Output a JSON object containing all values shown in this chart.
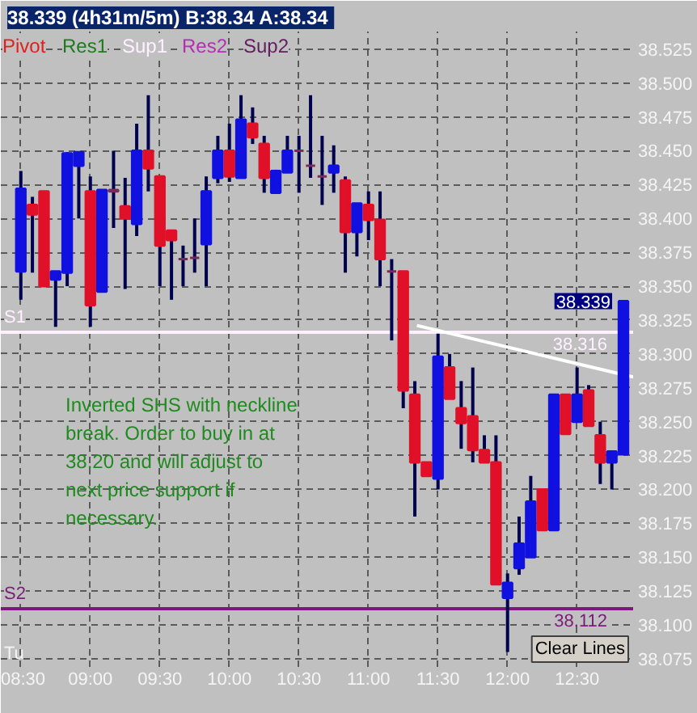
{
  "chart_data": {
    "type": "candlestick",
    "title": "38.339 (4h31m/5m)  B:38.34 A:38.34",
    "x": [
      8.5,
      8.5833,
      8.6667,
      8.75,
      8.8333,
      8.9167,
      9.0,
      9.0833,
      9.1667,
      9.25,
      9.3333,
      9.4167,
      9.5,
      9.5833,
      9.6667,
      9.75,
      9.8333,
      9.9167,
      10.0,
      10.0833,
      10.1667,
      10.25,
      10.3333,
      10.4167,
      10.5,
      10.5833,
      10.6667,
      10.75,
      10.8333,
      10.9167,
      11.0,
      11.0833,
      11.1667,
      11.25,
      11.3333,
      11.4167,
      11.5,
      11.5833,
      11.6667,
      11.75,
      11.8333,
      11.9167,
      12.0,
      12.0833,
      12.1667,
      12.25,
      12.3333,
      12.4167,
      12.5,
      12.5833,
      12.6667,
      12.75,
      12.8333
    ],
    "ohlc": [
      [
        38.361,
        38.435,
        38.34,
        38.422
      ],
      [
        38.41,
        38.416,
        38.36,
        38.403
      ],
      [
        38.42,
        38.42,
        38.35,
        38.35
      ],
      [
        38.355,
        38.361,
        38.32,
        38.361
      ],
      [
        38.36,
        38.449,
        38.35,
        38.448
      ],
      [
        38.439,
        38.449,
        38.4,
        38.449
      ],
      [
        38.42,
        38.431,
        38.32,
        38.336
      ],
      [
        38.346,
        38.421,
        38.346,
        38.421
      ],
      [
        38.421,
        38.45,
        38.393,
        38.42
      ],
      [
        38.409,
        38.43,
        38.348,
        38.4
      ],
      [
        38.396,
        38.47,
        38.387,
        38.45
      ],
      [
        38.45,
        38.491,
        38.42,
        38.437
      ],
      [
        38.431,
        38.431,
        38.35,
        38.38
      ],
      [
        38.391,
        38.391,
        38.34,
        38.384
      ],
      [
        38.37,
        38.38,
        38.35,
        38.37
      ],
      [
        38.371,
        38.4,
        38.36,
        38.371
      ],
      [
        38.381,
        38.431,
        38.35,
        38.42
      ],
      [
        38.43,
        38.461,
        38.426,
        38.45
      ],
      [
        38.45,
        38.47,
        38.427,
        38.431
      ],
      [
        38.43,
        38.491,
        38.43,
        38.473
      ],
      [
        38.47,
        38.482,
        38.455,
        38.46
      ],
      [
        38.455,
        38.461,
        38.419,
        38.43
      ],
      [
        38.419,
        38.436,
        38.419,
        38.435
      ],
      [
        38.434,
        38.461,
        38.434,
        38.45
      ],
      [
        38.45,
        38.461,
        38.419,
        38.45
      ],
      [
        38.439,
        38.491,
        38.43,
        38.439
      ],
      [
        38.431,
        38.461,
        38.41,
        38.431
      ],
      [
        38.434,
        38.454,
        38.419,
        38.439
      ],
      [
        38.428,
        38.431,
        38.36,
        38.39
      ],
      [
        38.39,
        38.411,
        38.372,
        38.411
      ],
      [
        38.41,
        38.42,
        38.384,
        38.399
      ],
      [
        38.399,
        38.42,
        38.35,
        38.37
      ],
      [
        38.361,
        38.37,
        38.31,
        38.361
      ],
      [
        38.361,
        38.361,
        38.26,
        38.273
      ],
      [
        38.27,
        38.28,
        38.18,
        38.22
      ],
      [
        38.22,
        38.22,
        38.21,
        38.21
      ],
      [
        38.208,
        38.315,
        38.2,
        38.298
      ],
      [
        38.29,
        38.3,
        38.267,
        38.267
      ],
      [
        38.26,
        38.28,
        38.23,
        38.249
      ],
      [
        38.254,
        38.29,
        38.22,
        38.229
      ],
      [
        38.229,
        38.24,
        38.22,
        38.22
      ],
      [
        38.22,
        38.24,
        38.13,
        38.13
      ],
      [
        38.12,
        38.138,
        38.08,
        38.131
      ],
      [
        38.142,
        38.18,
        38.137,
        38.16
      ],
      [
        38.15,
        38.21,
        38.15,
        38.191
      ],
      [
        38.2,
        38.2,
        38.17,
        38.17
      ],
      [
        38.17,
        38.27,
        38.17,
        38.27
      ],
      [
        38.27,
        38.27,
        38.241,
        38.241
      ],
      [
        38.25,
        38.29,
        38.25,
        38.27
      ],
      [
        38.273,
        38.277,
        38.247,
        38.247
      ],
      [
        38.24,
        38.25,
        38.204,
        38.22
      ],
      [
        38.22,
        38.228,
        38.2,
        38.228
      ],
      [
        38.226,
        38.339,
        38.226,
        38.339
      ]
    ],
    "colors": [
      "#1010e0",
      "#e01028",
      "#e01028",
      "#1010e0",
      "#1010e0",
      "#1010e0",
      "#e01028",
      "#1010e0",
      "#7a2a5a",
      "#e01028",
      "#1010e0",
      "#e01028",
      "#e01028",
      "#e01028",
      "#7a2a5a",
      "#7a2a5a",
      "#1010e0",
      "#1010e0",
      "#e01028",
      "#1010e0",
      "#e01028",
      "#e01028",
      "#1010e0",
      "#1010e0",
      "#7a2a5a",
      "#7a2a5a",
      "#7a2a5a",
      "#1010e0",
      "#e01028",
      "#1010e0",
      "#e01028",
      "#e01028",
      "#7a2a5a",
      "#e01028",
      "#e01028",
      "#e01028",
      "#1010e0",
      "#e01028",
      "#e01028",
      "#e01028",
      "#e01028",
      "#e01028",
      "#1010e0",
      "#1010e0",
      "#1010e0",
      "#e01028",
      "#1010e0",
      "#e01028",
      "#1010e0",
      "#e01028",
      "#e01028",
      "#1010e0",
      "#1010e0"
    ],
    "series": [
      {
        "type": "line",
        "color": "#ffffff",
        "x": [
          11.348,
          12.903
        ],
        "values": [
          38.321,
          38.283
        ]
      }
    ],
    "xlim": [
      8.356,
      12.903
    ],
    "xticks": [
      {
        "value": 8.5,
        "label": "08:30"
      },
      {
        "value": 9.0,
        "label": "09:00"
      },
      {
        "value": 9.5,
        "label": "09:30"
      },
      {
        "value": 10.0,
        "label": "10:00"
      },
      {
        "value": 10.5,
        "label": "10:30"
      },
      {
        "value": 11.0,
        "label": "11:00"
      },
      {
        "value": 11.5,
        "label": "11:30"
      },
      {
        "value": 12.0,
        "label": "12:00"
      },
      {
        "value": 12.5,
        "label": "12:30"
      }
    ],
    "ylim": [
      38.069,
      38.538
    ],
    "yticks": [
      38.075,
      {
        "value": 38.1,
        "label": "38.100"
      },
      38.125,
      {
        "value": 38.15,
        "label": "38.150"
      },
      38.175,
      {
        "value": 38.2,
        "label": "38.200"
      },
      38.225,
      {
        "value": 38.25,
        "label": "38.250"
      },
      38.275,
      {
        "value": 38.3,
        "label": "38.300"
      },
      38.325,
      {
        "value": 38.35,
        "label": "38.350"
      },
      38.375,
      {
        "value": 38.4,
        "label": "38.400"
      },
      38.425,
      {
        "value": 38.45,
        "label": "38.450"
      },
      38.475,
      {
        "value": 38.5,
        "label": "38.500"
      },
      38.525
    ],
    "ref_lines": [
      {
        "axis": "y",
        "value": 38.316,
        "label": "S1",
        "color": "#fff0ff"
      },
      {
        "axis": "y",
        "value": 38.112,
        "label": "S2",
        "color": "#7a1a7a"
      }
    ],
    "annotations": [
      "Pivot",
      "Res1",
      "Sup1",
      "Res2",
      "Sup2",
      "Inverted SHS with neckline break.  Order to buy in at 38.20 and will adjust to next price support if necessary.",
      "Tu",
      "Clear Lines",
      {
        "text": "38.339",
        "x": 12.8333,
        "y": 38.339
      },
      {
        "text": "38.316",
        "y": 38.316
      },
      {
        "text": "38.112",
        "y": 38.112
      }
    ],
    "grid": true
  }
}
